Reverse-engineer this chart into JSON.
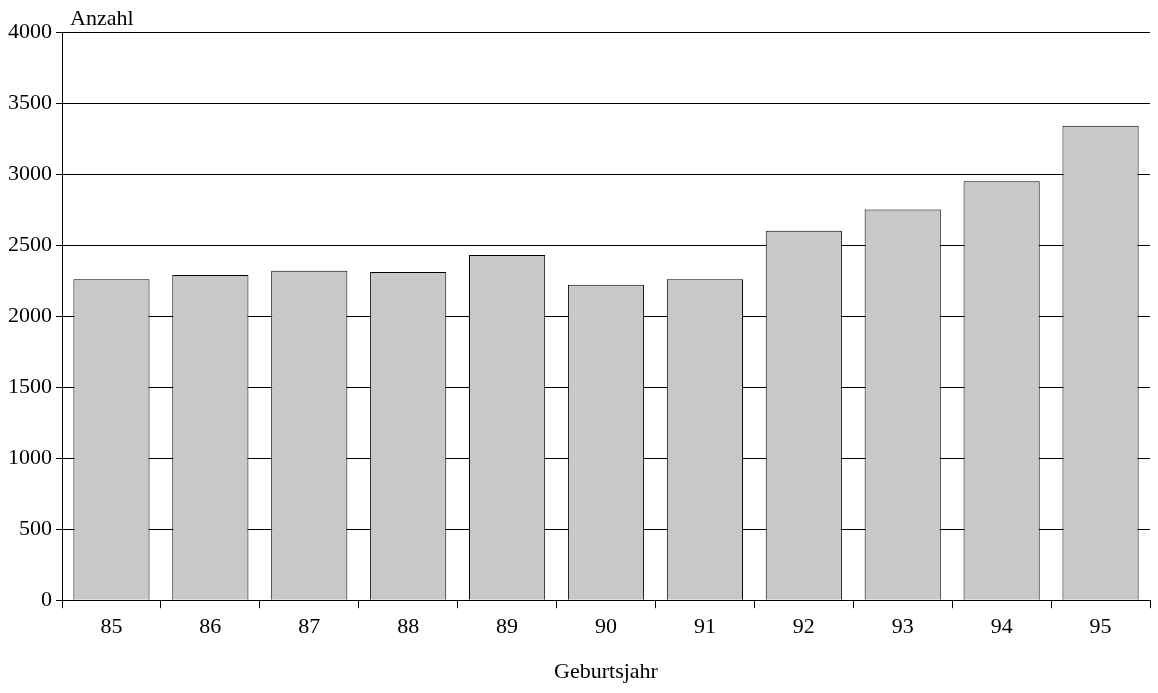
{
  "chart_data": {
    "type": "bar",
    "xlabel": "Geburtsjahr",
    "ylabel": "Anzahl",
    "categories": [
      "85",
      "86",
      "87",
      "88",
      "89",
      "90",
      "91",
      "92",
      "93",
      "94",
      "95"
    ],
    "values": [
      2260,
      2290,
      2320,
      2310,
      2430,
      2220,
      2260,
      2600,
      2750,
      2950,
      3340
    ],
    "color": "#c8c8c8",
    "ylim": [
      0,
      4000
    ],
    "yticks": [
      0,
      500,
      1000,
      1500,
      2000,
      2500,
      3000,
      3500,
      4000
    ],
    "grid": "y",
    "legend": false
  }
}
